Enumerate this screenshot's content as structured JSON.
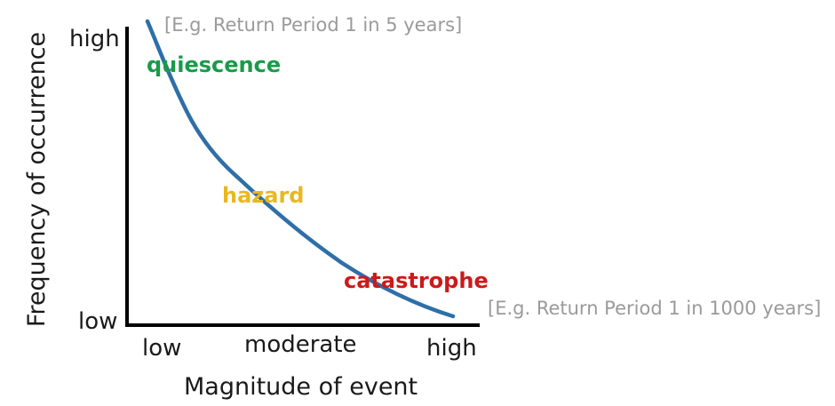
{
  "axes": {
    "y_title": "Frequency of occurrence",
    "x_title": "Magnitude of event",
    "y_high": "high",
    "y_low": "low",
    "x_low": "low",
    "x_moderate": "moderate",
    "x_high": "high"
  },
  "annotations": {
    "top_note": "[E.g. Return Period 1 in 5 years]",
    "bottom_note": "[E.g. Return Period 1 in 1000 years]"
  },
  "zones": [
    {
      "label": "quiescence",
      "color": "#1a9a4a"
    },
    {
      "label": "hazard",
      "color": "#e8b820"
    },
    {
      "label": "catastrophe",
      "color": "#cc1a1a"
    }
  ],
  "curve": {
    "color": "#2e6fa8"
  },
  "axis_color": "#000000"
}
